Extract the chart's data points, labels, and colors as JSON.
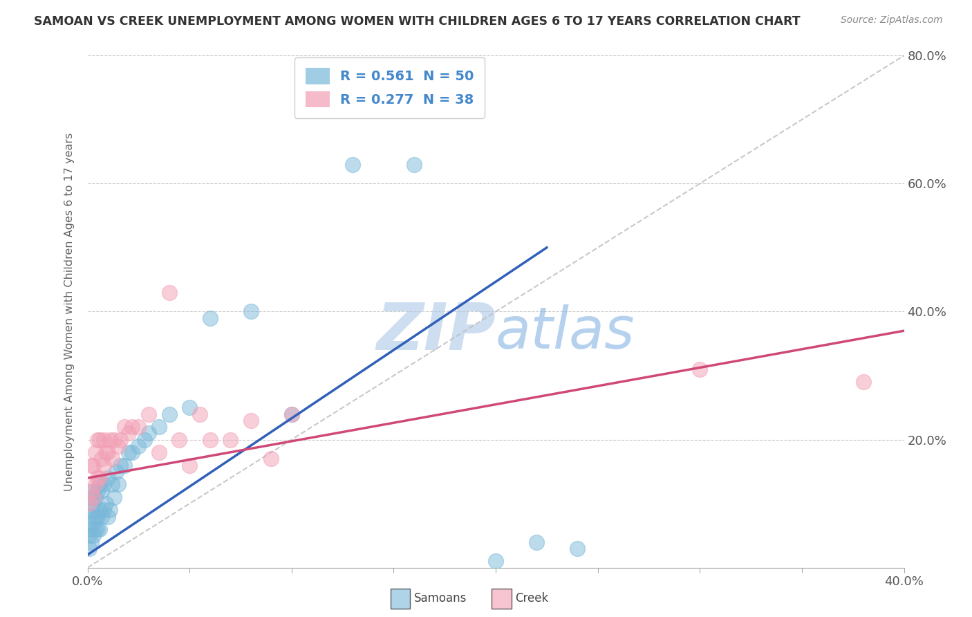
{
  "title": "SAMOAN VS CREEK UNEMPLOYMENT AMONG WOMEN WITH CHILDREN AGES 6 TO 17 YEARS CORRELATION CHART",
  "source": "Source: ZipAtlas.com",
  "ylabel": "Unemployment Among Women with Children Ages 6 to 17 years",
  "xlim": [
    0.0,
    0.4
  ],
  "ylim": [
    0.0,
    0.8
  ],
  "samoans_color": "#7ab8d9",
  "creek_color": "#f29fb5",
  "blue_line_color": "#3060b8",
  "pink_line_color": "#d04878",
  "dashed_line_color": "#bbbbbb",
  "legend_text_color": "#4488cc",
  "watermark_color": "#c8d8ee",
  "R_samoan": 0.561,
  "N_samoan": 50,
  "R_creek": 0.277,
  "N_creek": 38,
  "blue_line_x": [
    0.0,
    0.225
  ],
  "blue_line_y": [
    0.02,
    0.5
  ],
  "pink_line_x": [
    0.0,
    0.4
  ],
  "pink_line_y": [
    0.14,
    0.37
  ],
  "samoans_x": [
    0.001,
    0.001,
    0.001,
    0.002,
    0.002,
    0.002,
    0.002,
    0.003,
    0.003,
    0.003,
    0.003,
    0.004,
    0.004,
    0.004,
    0.005,
    0.005,
    0.005,
    0.006,
    0.006,
    0.006,
    0.007,
    0.007,
    0.008,
    0.008,
    0.009,
    0.01,
    0.01,
    0.011,
    0.012,
    0.013,
    0.014,
    0.015,
    0.016,
    0.018,
    0.02,
    0.022,
    0.025,
    0.028,
    0.03,
    0.035,
    0.04,
    0.05,
    0.06,
    0.08,
    0.1,
    0.13,
    0.16,
    0.2,
    0.22,
    0.24
  ],
  "samoans_y": [
    0.03,
    0.05,
    0.08,
    0.04,
    0.06,
    0.09,
    0.11,
    0.05,
    0.07,
    0.1,
    0.12,
    0.06,
    0.08,
    0.11,
    0.06,
    0.08,
    0.12,
    0.06,
    0.09,
    0.13,
    0.08,
    0.12,
    0.09,
    0.13,
    0.1,
    0.08,
    0.14,
    0.09,
    0.13,
    0.11,
    0.15,
    0.13,
    0.16,
    0.16,
    0.18,
    0.18,
    0.19,
    0.2,
    0.21,
    0.22,
    0.24,
    0.25,
    0.39,
    0.4,
    0.24,
    0.63,
    0.63,
    0.01,
    0.04,
    0.03
  ],
  "creek_x": [
    0.001,
    0.002,
    0.002,
    0.003,
    0.003,
    0.004,
    0.004,
    0.005,
    0.005,
    0.006,
    0.006,
    0.007,
    0.008,
    0.008,
    0.009,
    0.01,
    0.011,
    0.012,
    0.013,
    0.015,
    0.016,
    0.018,
    0.02,
    0.022,
    0.025,
    0.03,
    0.035,
    0.04,
    0.045,
    0.05,
    0.055,
    0.06,
    0.07,
    0.08,
    0.09,
    0.1,
    0.3,
    0.38
  ],
  "creek_y": [
    0.1,
    0.12,
    0.16,
    0.11,
    0.16,
    0.13,
    0.18,
    0.14,
    0.2,
    0.14,
    0.2,
    0.17,
    0.16,
    0.2,
    0.18,
    0.18,
    0.2,
    0.17,
    0.2,
    0.19,
    0.2,
    0.22,
    0.21,
    0.22,
    0.22,
    0.24,
    0.18,
    0.43,
    0.2,
    0.16,
    0.24,
    0.2,
    0.2,
    0.23,
    0.17,
    0.24,
    0.31,
    0.29
  ]
}
